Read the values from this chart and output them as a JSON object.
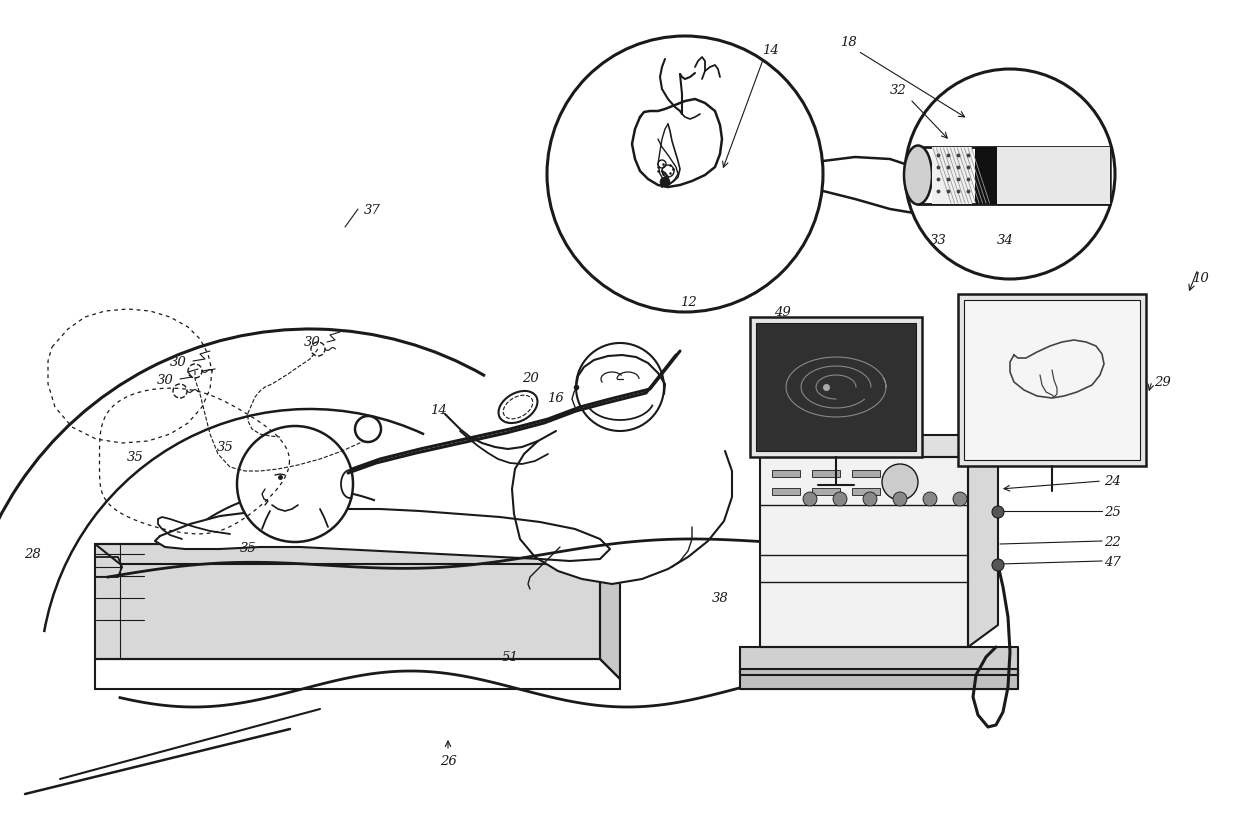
{
  "bg": "#ffffff",
  "lc": "#1a1a1a",
  "figsize": [
    12.4,
    8.29
  ],
  "dpi": 100
}
